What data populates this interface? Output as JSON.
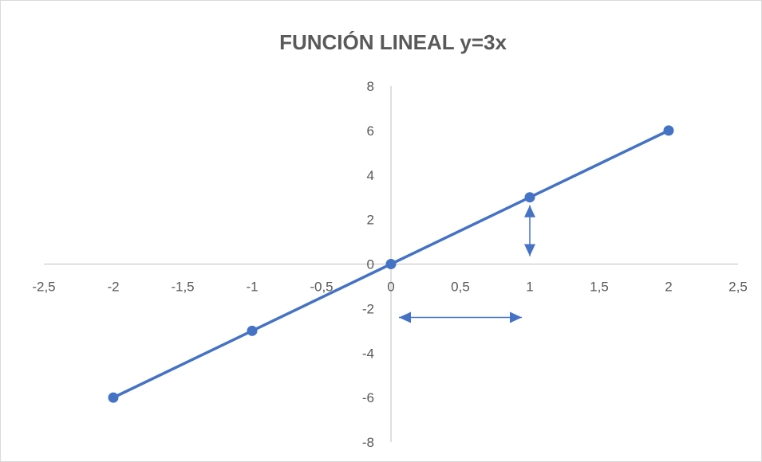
{
  "chart_data": {
    "type": "scatter",
    "title": "FUNCIÓN LINEAL y=3x",
    "x": [
      -2,
      -1,
      0,
      1,
      2
    ],
    "y": [
      -6,
      -3,
      0,
      3,
      6
    ],
    "xlim": [
      -2.5,
      2.5
    ],
    "ylim": [
      -8,
      8
    ],
    "x_ticks": [
      "-2,5",
      "-2",
      "-1,5",
      "-1",
      "-0,5",
      "0",
      "0,5",
      "1",
      "1,5",
      "2",
      "2,5"
    ],
    "y_ticks": [
      "8",
      "6",
      "4",
      "2",
      "0",
      "-2",
      "-4",
      "-6",
      "-8"
    ],
    "markers": true,
    "lines": true,
    "grid": false,
    "annotations": [
      {
        "type": "double-arrow",
        "from": [
          1,
          0
        ],
        "to": [
          1,
          3
        ]
      },
      {
        "type": "double-arrow",
        "from": [
          0,
          -2.4
        ],
        "to": [
          1,
          -2.4
        ]
      }
    ]
  },
  "colors": {
    "series": "#4472c4",
    "axis": "#bfbfbf",
    "text": "#595959"
  }
}
